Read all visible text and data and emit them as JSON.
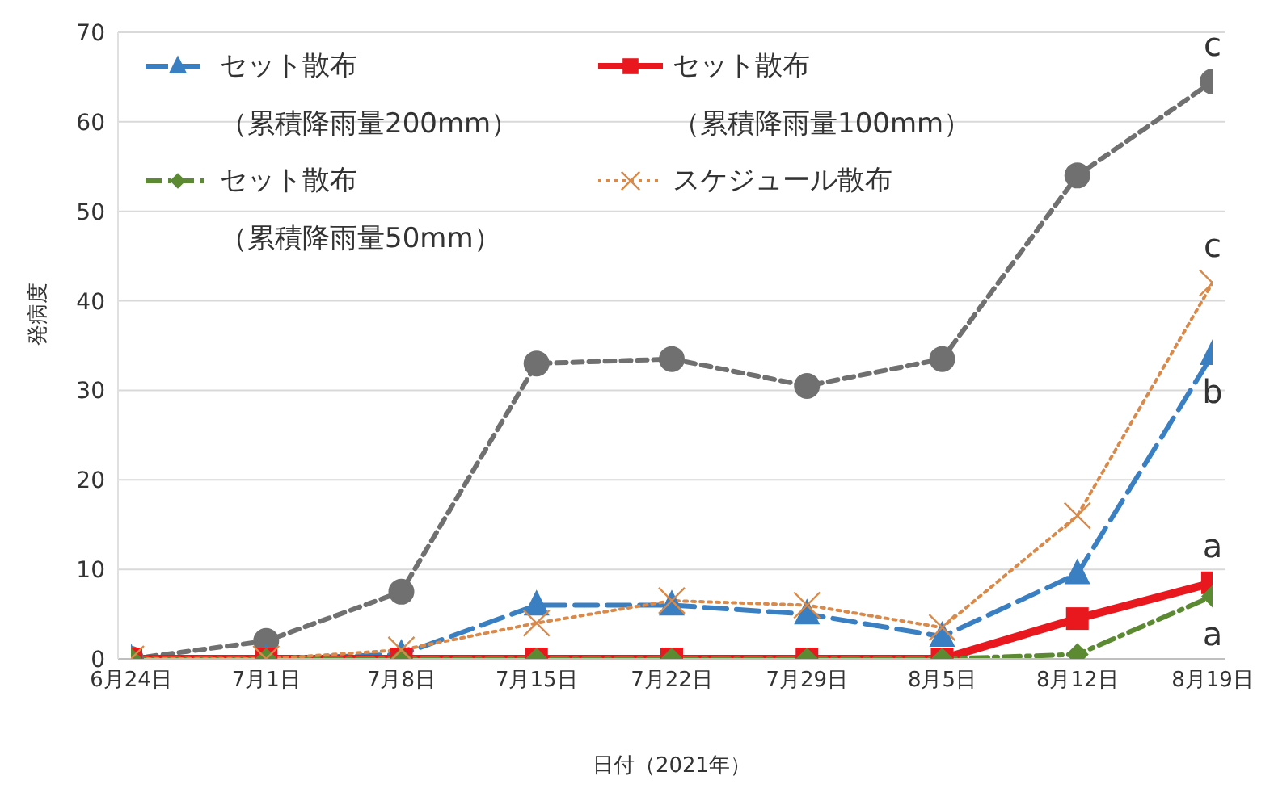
{
  "chart_data": {
    "type": "line",
    "xlabel": "日付（2021年）",
    "ylabel": "発病度",
    "categories": [
      "6月24日",
      "7月1日",
      "7月8日",
      "7月15日",
      "7月22日",
      "7月29日",
      "8月5日",
      "8月12日",
      "8月19日"
    ],
    "ylim": [
      0,
      70
    ],
    "yticks": [
      0,
      10,
      20,
      30,
      40,
      50,
      60,
      70
    ],
    "grid": "y",
    "legend": "top left",
    "series": [
      {
        "color": "#707070",
        "marker": "circle",
        "line_style": "dashed",
        "values": [
          0,
          2,
          7.5,
          33,
          33.5,
          30.5,
          33.5,
          54,
          64.5
        ]
      },
      {
        "name": "セット散布（累積降雨量200mm）",
        "color": "#3a7fc1",
        "marker": "triangle",
        "line_style": "dashed",
        "values": [
          0,
          0,
          0.5,
          6,
          6,
          5,
          2.5,
          9.5,
          34
        ]
      },
      {
        "name": "セット散布（累積降雨量100mm）",
        "color": "#e8181e",
        "marker": "square",
        "line_style": "solid",
        "values": [
          0,
          0,
          0,
          0,
          0,
          0,
          0,
          4.5,
          8.5
        ]
      },
      {
        "name": "セット散布（累積降雨量50mm）",
        "color": "#5b8a32",
        "marker": "diamond",
        "line_style": "dashed",
        "values": [
          0,
          0,
          0,
          0,
          0,
          0,
          0,
          0.5,
          7
        ]
      },
      {
        "name": "スケジュール散布",
        "color": "#d98a4a",
        "marker": "cross",
        "line_style": "dotted",
        "values": [
          0,
          0,
          1,
          4,
          6.5,
          6,
          3.5,
          16,
          42
        ]
      }
    ],
    "annotations": [
      {
        "text": "c",
        "x": "8月19日",
        "y": 64.5
      },
      {
        "text": "c",
        "x": "8月19日",
        "y": 42
      },
      {
        "text": "b",
        "x": "8月19日",
        "y": 34
      },
      {
        "text": "a",
        "x": "8月19日",
        "y": 8.5
      },
      {
        "text": "a",
        "x": "8月19日",
        "y": 7
      }
    ]
  }
}
